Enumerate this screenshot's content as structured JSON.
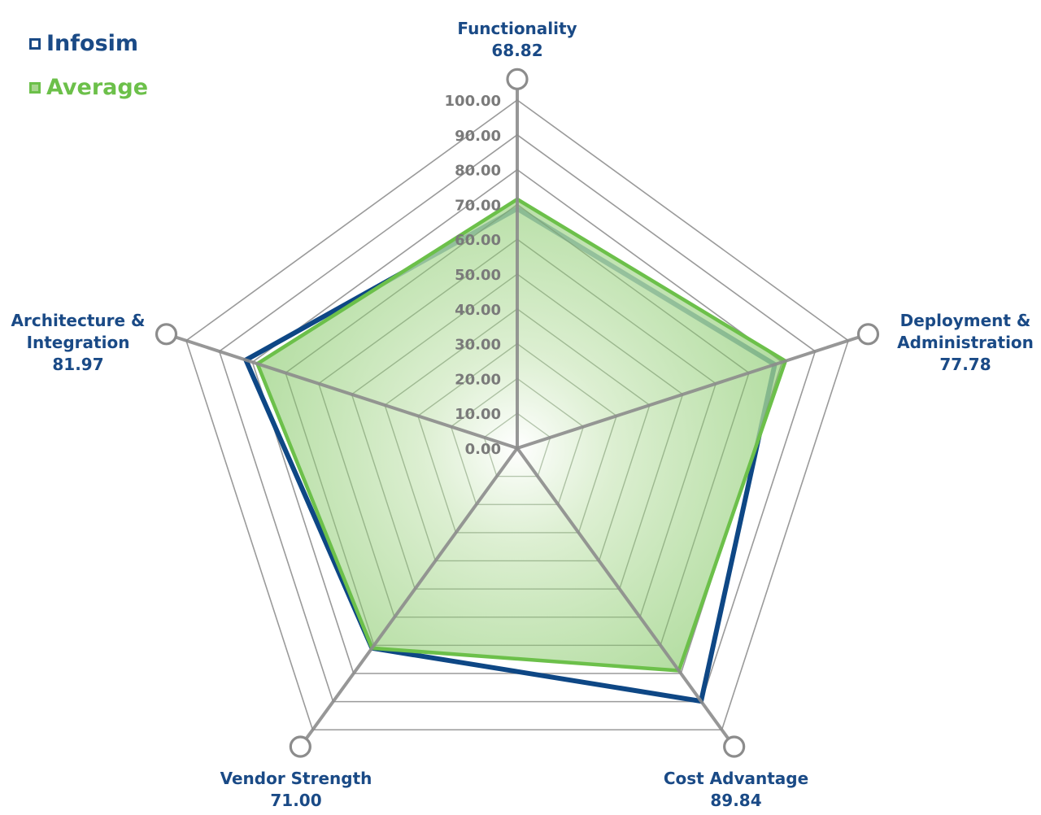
{
  "legend": {
    "infosim": {
      "label": "Infosim",
      "color": "#1a4a86"
    },
    "average": {
      "label": "Average",
      "color": "#6cc04a"
    }
  },
  "axes": [
    {
      "name": "Functionality",
      "line1": "Functionality",
      "line2": "",
      "value_label": "68.82"
    },
    {
      "name": "Deployment & Administration",
      "line1": "Deployment &",
      "line2": "Administration",
      "value_label": "77.78"
    },
    {
      "name": "Cost Advantage",
      "line1": "Cost Advantage",
      "line2": "",
      "value_label": "89.84"
    },
    {
      "name": "Vendor Strength",
      "line1": "Vendor Strength",
      "line2": "",
      "value_label": "71.00"
    },
    {
      "name": "Architecture & Integration",
      "line1": "Architecture &",
      "line2": "Integration",
      "value_label": "81.97"
    }
  ],
  "ticks": [
    "0.00",
    "10.00",
    "20.00",
    "30.00",
    "40.00",
    "50.00",
    "60.00",
    "70.00",
    "80.00",
    "90.00",
    "100.00"
  ],
  "colors": {
    "infosim_line": "#0e4785",
    "average_line": "#6cc04a",
    "average_fill": "#9fd488",
    "grid": "#9a9a9a",
    "axis": "#8c8c8c",
    "label": "#1a4a86",
    "tick": "#7a7a7a"
  },
  "chart_data": {
    "type": "radar",
    "title": "",
    "categories": [
      "Functionality",
      "Deployment & Administration",
      "Cost Advantage",
      "Vendor Strength",
      "Architecture & Integration"
    ],
    "series": [
      {
        "name": "Infosim",
        "values": [
          68.82,
          77.78,
          89.84,
          71.0,
          81.97
        ]
      },
      {
        "name": "Average",
        "values": [
          71.5,
          81.0,
          79.0,
          71.0,
          78.5
        ]
      }
    ],
    "rlim": [
      0,
      100
    ],
    "rticks": [
      0,
      10,
      20,
      30,
      40,
      50,
      60,
      70,
      80,
      90,
      100
    ],
    "grid": true,
    "legend_position": "top-left"
  }
}
